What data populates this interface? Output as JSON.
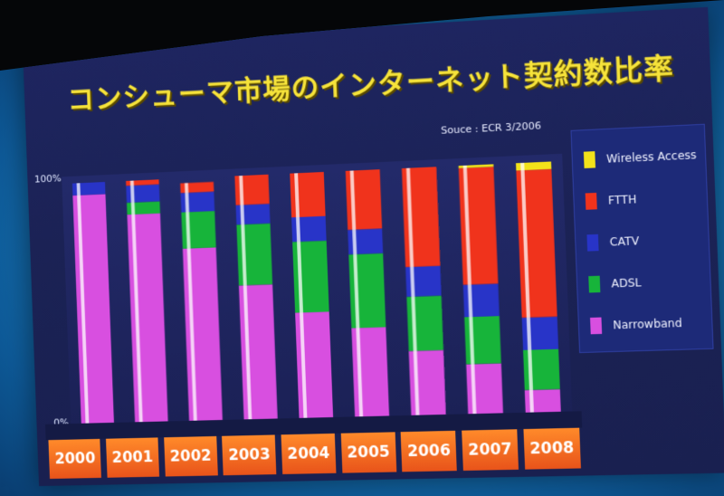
{
  "slide": {
    "title": "コンシューマ市場のインターネット契約数比率",
    "source": "Souce : ECR 3/2006"
  },
  "chart_data": {
    "type": "bar",
    "stacked": true,
    "categories": [
      "2000",
      "2001",
      "2002",
      "2003",
      "2004",
      "2005",
      "2006",
      "2007",
      "2008"
    ],
    "series": [
      {
        "name": "Narrowband",
        "color": "#d84fe0",
        "values": [
          95,
          86,
          71,
          55,
          43,
          36,
          26,
          20,
          9
        ]
      },
      {
        "name": "ADSL",
        "color": "#17b43a",
        "values": [
          0,
          5,
          15,
          25,
          29,
          30,
          22,
          19,
          16
        ]
      },
      {
        "name": "CATV",
        "color": "#2834c8",
        "values": [
          5,
          7,
          8,
          8,
          10,
          10,
          12,
          13,
          13
        ]
      },
      {
        "name": "FTTH",
        "color": "#f0331c",
        "values": [
          0,
          2,
          4,
          12,
          18,
          24,
          40,
          47,
          59
        ]
      },
      {
        "name": "Wireless Access",
        "color": "#f2e21a",
        "values": [
          0,
          0,
          0,
          0,
          0,
          0,
          0,
          1,
          3
        ]
      }
    ],
    "yticks": [
      "0%",
      "100%"
    ],
    "ylim": [
      0,
      100
    ],
    "legend_position": "right",
    "legend_order": [
      "Wireless Access",
      "FTTH",
      "CATV",
      "ADSL",
      "Narrowband"
    ]
  }
}
